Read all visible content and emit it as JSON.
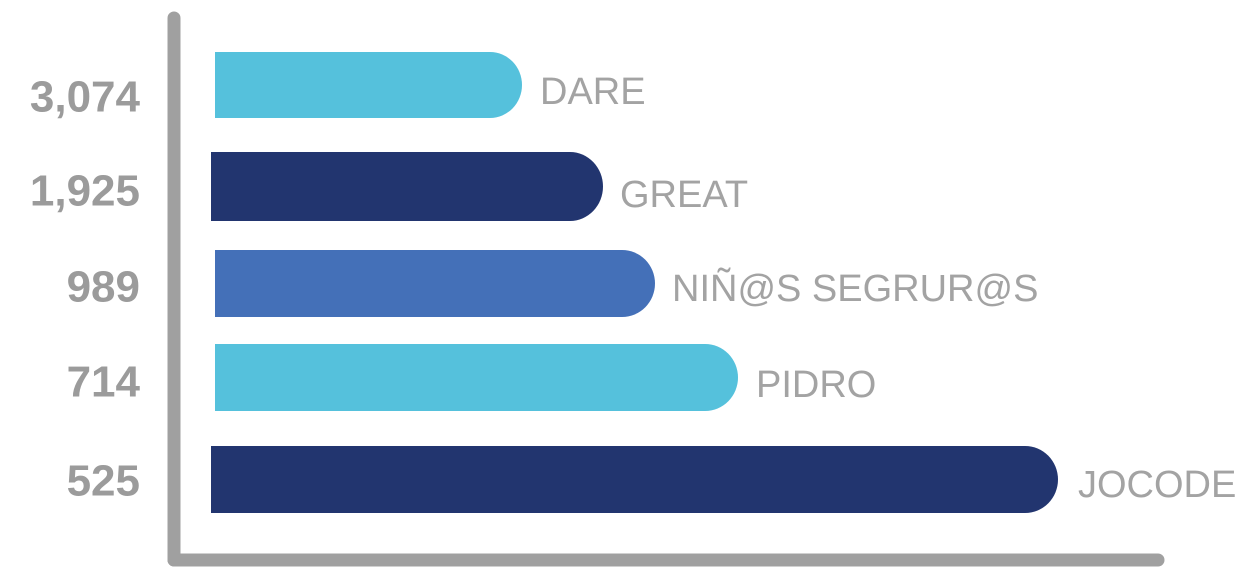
{
  "rows": [
    {
      "value": "3,074",
      "name": "DARE"
    },
    {
      "value": "1,925",
      "name": "GREAT"
    },
    {
      "value": "989",
      "name": "NIÑ@S SEGRUR@S"
    },
    {
      "value": "714",
      "name": "PIDRO"
    },
    {
      "value": "525",
      "name": "JOCODE"
    }
  ]
}
